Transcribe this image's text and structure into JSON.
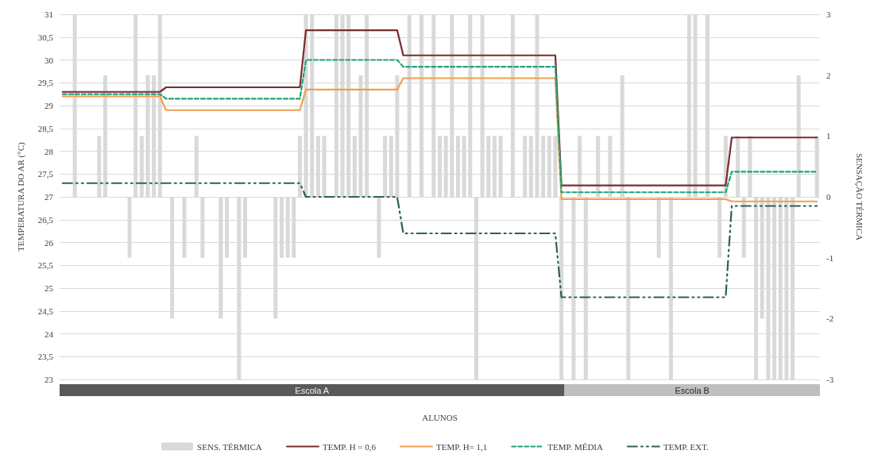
{
  "chart_data": {
    "type": "bar",
    "xlabel": "ALUNOS",
    "ylabel": "TEMPERATURA DO AR (°C)",
    "y2label": "SENSAÇÃO TÉRMICA",
    "categories": [
      null,
      null,
      null,
      null,
      null,
      null,
      null,
      null,
      null,
      null,
      null,
      null,
      null,
      null,
      null,
      null,
      null,
      null,
      null,
      null,
      null,
      null,
      null,
      null,
      null,
      null,
      null,
      null,
      null,
      null,
      null,
      null,
      null,
      null,
      null,
      null,
      null,
      null,
      null,
      null,
      null,
      null,
      null,
      null,
      null,
      null,
      null,
      null,
      null,
      null,
      null,
      null,
      null,
      null,
      null,
      null,
      null,
      null,
      null,
      null,
      null,
      null,
      null,
      null,
      null,
      null,
      null,
      null,
      null,
      null,
      null,
      null,
      null,
      null,
      null,
      null,
      null,
      null,
      null,
      null,
      null,
      null,
      null,
      null,
      null,
      null,
      null,
      null,
      null,
      null,
      null,
      null,
      null,
      null,
      null,
      null,
      null,
      null,
      null,
      null,
      null,
      null,
      null,
      null,
      null,
      null,
      null,
      null,
      null,
      null,
      null,
      null,
      null,
      null,
      null,
      null,
      null,
      null,
      null,
      null,
      null,
      null,
      null,
      null,
      null
    ],
    "series": [
      {
        "name": "SENS. TÉRMICA",
        "axis": "y2",
        "color": "#d9d9d9",
        "values": [
          0,
          0,
          3,
          0,
          0,
          0,
          1,
          2,
          0,
          0,
          0,
          -1,
          3,
          1,
          2,
          2,
          3,
          0,
          -2,
          0,
          -1,
          0,
          1,
          -1,
          0,
          0,
          -2,
          -1,
          0,
          -3,
          -1,
          0,
          0,
          0,
          0,
          -2,
          -1,
          -1,
          -1,
          1,
          3,
          3,
          1,
          1,
          0,
          3,
          3,
          3,
          1,
          2,
          3,
          0,
          -1,
          1,
          1,
          2,
          0,
          3,
          0,
          3,
          0,
          3,
          1,
          1,
          3,
          1,
          1,
          3,
          -3,
          3,
          1,
          1,
          1,
          0,
          3,
          0,
          1,
          1,
          3,
          1,
          1,
          1,
          -3,
          0,
          -3,
          1,
          -3,
          0,
          1,
          0,
          1,
          0,
          2,
          -3,
          0,
          0,
          0,
          0,
          -1,
          0,
          -3,
          0,
          0,
          3,
          3,
          0,
          3,
          0,
          -1,
          1,
          0,
          1,
          -1,
          1,
          -3,
          -2,
          -3,
          -3,
          -3,
          -3,
          -3,
          2,
          0,
          0,
          1
        ]
      },
      {
        "name": "TEMP. H = 0,6",
        "type": "line",
        "color": "#7b2c2c",
        "line_style": "solid",
        "values": [
          29.3,
          29.3,
          29.3,
          29.3,
          29.3,
          29.3,
          29.3,
          29.3,
          29.3,
          29.3,
          29.3,
          29.3,
          29.3,
          29.3,
          29.3,
          29.3,
          29.3,
          29.4,
          29.4,
          29.4,
          29.4,
          29.4,
          29.4,
          29.4,
          29.4,
          29.4,
          29.4,
          29.4,
          29.4,
          29.4,
          29.4,
          29.4,
          29.4,
          29.4,
          29.4,
          29.4,
          29.4,
          29.4,
          29.4,
          29.4,
          30.65,
          30.65,
          30.65,
          30.65,
          30.65,
          30.65,
          30.65,
          30.65,
          30.65,
          30.65,
          30.65,
          30.65,
          30.65,
          30.65,
          30.65,
          30.65,
          30.1,
          30.1,
          30.1,
          30.1,
          30.1,
          30.1,
          30.1,
          30.1,
          30.1,
          30.1,
          30.1,
          30.1,
          30.1,
          30.1,
          30.1,
          30.1,
          30.1,
          30.1,
          30.1,
          30.1,
          30.1,
          30.1,
          30.1,
          30.1,
          30.1,
          30.1,
          27.25,
          27.25,
          27.25,
          27.25,
          27.25,
          27.25,
          27.25,
          27.25,
          27.25,
          27.25,
          27.25,
          27.25,
          27.25,
          27.25,
          27.25,
          27.25,
          27.25,
          27.25,
          27.25,
          27.25,
          27.25,
          27.25,
          27.25,
          27.25,
          27.25,
          27.25,
          27.25,
          27.25,
          28.3,
          28.3,
          28.3,
          28.3,
          28.3,
          28.3,
          28.3,
          28.3,
          28.3,
          28.3,
          28.3,
          28.3,
          28.3,
          28.3,
          28.3
        ]
      },
      {
        "name": "TEMP. H= 1,1",
        "type": "line",
        "color": "#f0a050",
        "line_style": "solid",
        "values": [
          29.2,
          29.2,
          29.2,
          29.2,
          29.2,
          29.2,
          29.2,
          29.2,
          29.2,
          29.2,
          29.2,
          29.2,
          29.2,
          29.2,
          29.2,
          29.2,
          29.2,
          28.9,
          28.9,
          28.9,
          28.9,
          28.9,
          28.9,
          28.9,
          28.9,
          28.9,
          28.9,
          28.9,
          28.9,
          28.9,
          28.9,
          28.9,
          28.9,
          28.9,
          28.9,
          28.9,
          28.9,
          28.9,
          28.9,
          28.9,
          29.35,
          29.35,
          29.35,
          29.35,
          29.35,
          29.35,
          29.35,
          29.35,
          29.35,
          29.35,
          29.35,
          29.35,
          29.35,
          29.35,
          29.35,
          29.35,
          29.6,
          29.6,
          29.6,
          29.6,
          29.6,
          29.6,
          29.6,
          29.6,
          29.6,
          29.6,
          29.6,
          29.6,
          29.6,
          29.6,
          29.6,
          29.6,
          29.6,
          29.6,
          29.6,
          29.6,
          29.6,
          29.6,
          29.6,
          29.6,
          29.6,
          29.6,
          26.95,
          26.95,
          26.95,
          26.95,
          26.95,
          26.95,
          26.95,
          26.95,
          26.95,
          26.95,
          26.95,
          26.95,
          26.95,
          26.95,
          26.95,
          26.95,
          26.95,
          26.95,
          26.95,
          26.95,
          26.95,
          26.95,
          26.95,
          26.95,
          26.95,
          26.95,
          26.95,
          26.95,
          26.9,
          26.9,
          26.9,
          26.9,
          26.9,
          26.9,
          26.9,
          26.9,
          26.9,
          26.9,
          26.9,
          26.9,
          26.9,
          26.9,
          26.9
        ]
      },
      {
        "name": "TEMP. MÉDIA",
        "type": "line",
        "color": "#1fa37a",
        "line_style": "dashed",
        "values": [
          29.25,
          29.25,
          29.25,
          29.25,
          29.25,
          29.25,
          29.25,
          29.25,
          29.25,
          29.25,
          29.25,
          29.25,
          29.25,
          29.25,
          29.25,
          29.25,
          29.25,
          29.15,
          29.15,
          29.15,
          29.15,
          29.15,
          29.15,
          29.15,
          29.15,
          29.15,
          29.15,
          29.15,
          29.15,
          29.15,
          29.15,
          29.15,
          29.15,
          29.15,
          29.15,
          29.15,
          29.15,
          29.15,
          29.15,
          29.15,
          30.0,
          30.0,
          30.0,
          30.0,
          30.0,
          30.0,
          30.0,
          30.0,
          30.0,
          30.0,
          30.0,
          30.0,
          30.0,
          30.0,
          30.0,
          30.0,
          29.85,
          29.85,
          29.85,
          29.85,
          29.85,
          29.85,
          29.85,
          29.85,
          29.85,
          29.85,
          29.85,
          29.85,
          29.85,
          29.85,
          29.85,
          29.85,
          29.85,
          29.85,
          29.85,
          29.85,
          29.85,
          29.85,
          29.85,
          29.85,
          29.85,
          29.85,
          27.1,
          27.1,
          27.1,
          27.1,
          27.1,
          27.1,
          27.1,
          27.1,
          27.1,
          27.1,
          27.1,
          27.1,
          27.1,
          27.1,
          27.1,
          27.1,
          27.1,
          27.1,
          27.1,
          27.1,
          27.1,
          27.1,
          27.1,
          27.1,
          27.1,
          27.1,
          27.1,
          27.1,
          27.55,
          27.55,
          27.55,
          27.55,
          27.55,
          27.55,
          27.55,
          27.55,
          27.55,
          27.55,
          27.55,
          27.55,
          27.55,
          27.55,
          27.55
        ]
      },
      {
        "name": "TEMP. EXT.",
        "type": "line",
        "color": "#2f5f5f",
        "line_style": "dashdot",
        "values": [
          27.3,
          27.3,
          27.3,
          27.3,
          27.3,
          27.3,
          27.3,
          27.3,
          27.3,
          27.3,
          27.3,
          27.3,
          27.3,
          27.3,
          27.3,
          27.3,
          27.3,
          27.3,
          27.3,
          27.3,
          27.3,
          27.3,
          27.3,
          27.3,
          27.3,
          27.3,
          27.3,
          27.3,
          27.3,
          27.3,
          27.3,
          27.3,
          27.3,
          27.3,
          27.3,
          27.3,
          27.3,
          27.3,
          27.3,
          27.3,
          27.0,
          27.0,
          27.0,
          27.0,
          27.0,
          27.0,
          27.0,
          27.0,
          27.0,
          27.0,
          27.0,
          27.0,
          27.0,
          27.0,
          27.0,
          27.0,
          26.2,
          26.2,
          26.2,
          26.2,
          26.2,
          26.2,
          26.2,
          26.2,
          26.2,
          26.2,
          26.2,
          26.2,
          26.2,
          26.2,
          26.2,
          26.2,
          26.2,
          26.2,
          26.2,
          26.2,
          26.2,
          26.2,
          26.2,
          26.2,
          26.2,
          26.2,
          24.8,
          24.8,
          24.8,
          24.8,
          24.8,
          24.8,
          24.8,
          24.8,
          24.8,
          24.8,
          24.8,
          24.8,
          24.8,
          24.8,
          24.8,
          24.8,
          24.8,
          24.8,
          24.8,
          24.8,
          24.8,
          24.8,
          24.8,
          24.8,
          24.8,
          24.8,
          24.8,
          24.8,
          26.8,
          26.8,
          26.8,
          26.8,
          26.8,
          26.8,
          26.8,
          26.8,
          26.8,
          26.8,
          26.8,
          26.8,
          26.8,
          26.8,
          26.8
        ]
      }
    ],
    "ylim": [
      23,
      31
    ],
    "yticks": [
      23,
      {
        "value": 23.5,
        "label": "23,5"
      },
      24,
      {
        "value": 24.5,
        "label": "24,5"
      },
      25,
      {
        "value": 25.5,
        "label": "25,5"
      },
      26,
      {
        "value": 26.5,
        "label": "26,5"
      },
      27,
      {
        "value": 27.5,
        "label": "27,5"
      },
      28,
      {
        "value": 28.5,
        "label": "28,5"
      },
      29,
      {
        "value": 29.5,
        "label": "29,5"
      },
      30,
      {
        "value": 30.5,
        "label": "30,5"
      },
      31
    ],
    "y2lim": [
      -3,
      3
    ],
    "y2ticks": [
      -3,
      -2,
      -1,
      0,
      1,
      2,
      3
    ],
    "annotations": [
      "Escola A",
      "Escola B"
    ],
    "grid": "y",
    "legend": "bottom",
    "marker": "none"
  }
}
